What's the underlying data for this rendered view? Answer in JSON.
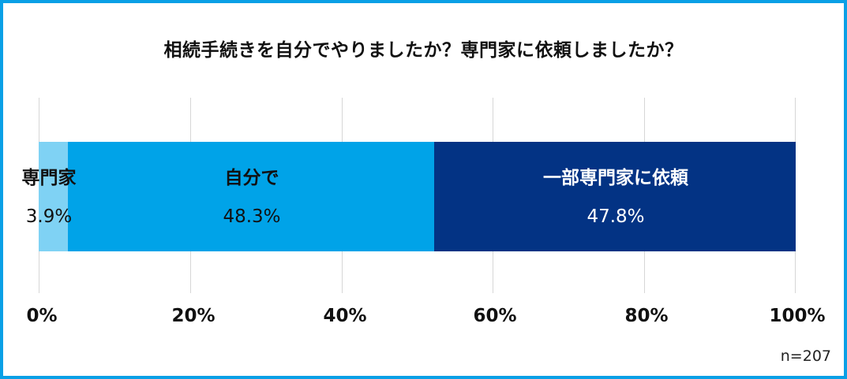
{
  "frame": {
    "border_color": "#0aa0e6"
  },
  "chart_data": {
    "type": "bar",
    "orientation": "horizontal",
    "stacked": true,
    "title": "相続手続きを自分でやりましたか？専門家に依頼しましたか？",
    "categories": [
      ""
    ],
    "series": [
      {
        "name": "専門家",
        "values": [
          3.9
        ],
        "color": "#7fd2f4",
        "label": "3.9%"
      },
      {
        "name": "自分で",
        "values": [
          48.3
        ],
        "color": "#00a3e8",
        "label": "48.3%"
      },
      {
        "name": "一部専門家に依頼",
        "values": [
          47.8
        ],
        "color": "#033384",
        "label": "47.8%"
      }
    ],
    "xlabel": "",
    "ylabel": "",
    "xlim": [
      0,
      100
    ],
    "x_ticks": [
      "0%",
      "20%",
      "40%",
      "60%",
      "80%",
      "100%"
    ],
    "grid": true,
    "legend": "none (labels inside bars)",
    "annotation": "n=207"
  }
}
